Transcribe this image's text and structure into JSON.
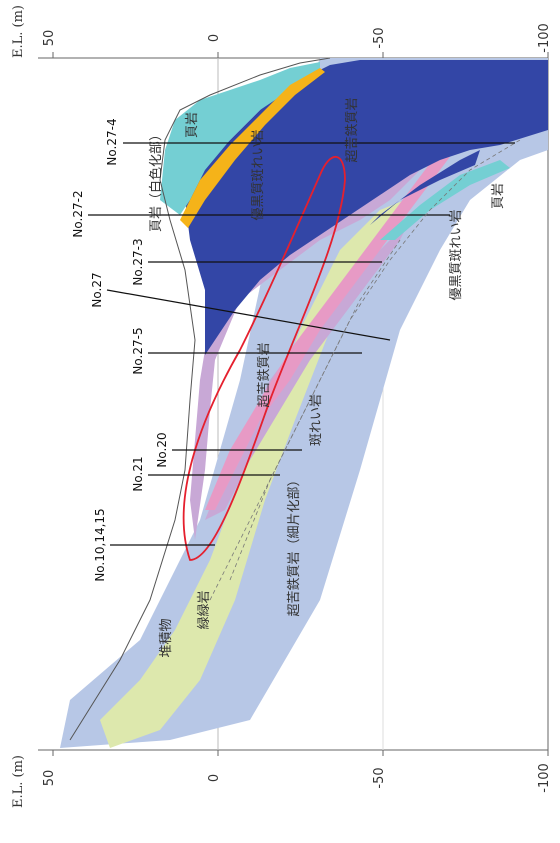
{
  "axis": {
    "title": "E.L. (m)",
    "ticks": [
      "50",
      "0",
      "-50",
      "-100"
    ]
  },
  "boreholes": [
    "No.27-4",
    "No.27-2",
    "No.27-3",
    "No.27",
    "No.27-5",
    "No.20",
    "No.21",
    "No.10,14,15"
  ],
  "units": {
    "sekisou": "堆積物",
    "ryokusekigan": "緑緑岩",
    "choukotetsuhitsugan_saihen": "超苦鉄質岩（細片化部）",
    "hanreigan": "斑れい岩",
    "choukotetsuhitsugan_1": "超苦鉄質岩",
    "choukotetsuhitsugan_2": "超苦鉄質岩",
    "yuushoku_hanreigan_1": "優黒質斑れい岩",
    "yuushoku_hanreigan_2": "優黒質斑れい岩",
    "kengan_1": "頁岩",
    "kengan_2": "頁岩（白色化部）",
    "hengan": "頁岩",
    "gyougan": "頁岩"
  },
  "colors": {
    "light_blue": "#b7c7e6",
    "light_green": "#dde8ad",
    "lavender": "#c8a8d6",
    "pink": "#e79ac5",
    "dark_blue": "#3346a6",
    "cyan": "#74cfd3",
    "orange": "#f5b319",
    "red_outline": "#e5202e"
  }
}
